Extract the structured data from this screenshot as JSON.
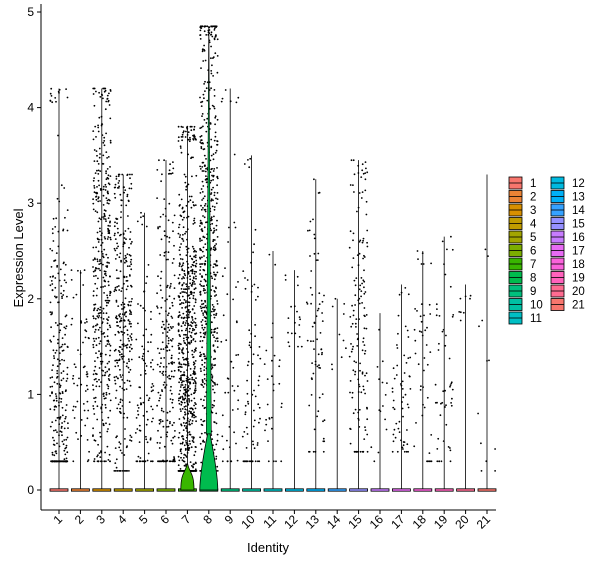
{
  "chart_data": {
    "type": "violin",
    "xlabel": "Identity",
    "ylabel": "Expression Level",
    "ylim": [
      0,
      5
    ],
    "yticks": [
      0,
      1,
      2,
      3,
      4,
      5
    ],
    "categories": [
      "1",
      "2",
      "3",
      "4",
      "5",
      "6",
      "7",
      "8",
      "9",
      "10",
      "11",
      "12",
      "13",
      "14",
      "15",
      "16",
      "17",
      "18",
      "19",
      "20",
      "21"
    ],
    "colors": [
      "#F8766D",
      "#EB8335",
      "#D89000",
      "#BF9B00",
      "#A3A500",
      "#7CAE00",
      "#39B600",
      "#00BB4E",
      "#00BF7D",
      "#00C1A3",
      "#00BFC4",
      "#00BAE0",
      "#00B0F6",
      "#35A2FF",
      "#9590FF",
      "#C77CFF",
      "#E76BF3",
      "#FA62DB",
      "#FF62BC",
      "#FF6C91",
      "#F8766D"
    ],
    "max_values": [
      4.2,
      2.3,
      4.2,
      3.3,
      2.9,
      3.45,
      3.8,
      4.85,
      4.2,
      3.5,
      2.5,
      2.3,
      3.25,
      2.0,
      3.45,
      1.85,
      2.15,
      2.5,
      2.65,
      2.15,
      3.3
    ],
    "point_density": [
      300,
      60,
      420,
      300,
      100,
      220,
      700,
      650,
      50,
      80,
      30,
      20,
      70,
      10,
      150,
      15,
      60,
      45,
      50,
      8,
      12
    ],
    "point_min": [
      0.3,
      0.3,
      0.3,
      0.2,
      0.3,
      0.3,
      0.2,
      0.2,
      0.3,
      0.3,
      0.3,
      1.5,
      0.4,
      1.0,
      0.4,
      0.3,
      0.4,
      0.3,
      0.3,
      1.6,
      0.2
    ],
    "point_center": [
      0.9,
      1.3,
      2.1,
      1.8,
      1.2,
      1.3,
      1.4,
      2.3,
      1.2,
      1.3,
      1.0,
      1.8,
      1.4,
      1.5,
      1.8,
      1.0,
      0.9,
      1.3,
      1.2,
      1.9,
      0.9
    ],
    "violin_widths": [
      0.05,
      0.03,
      0.06,
      0.05,
      0.03,
      0.05,
      0.55,
      0.75,
      0.03,
      0.03,
      0.02,
      0.02,
      0.03,
      0.02,
      0.03,
      0.02,
      0.03,
      0.03,
      0.03,
      0.02,
      0.02
    ],
    "legend": [
      "1",
      "2",
      "3",
      "4",
      "5",
      "6",
      "7",
      "8",
      "9",
      "10",
      "11",
      "12",
      "13",
      "14",
      "15",
      "16",
      "17",
      "18",
      "19",
      "20",
      "21"
    ]
  }
}
